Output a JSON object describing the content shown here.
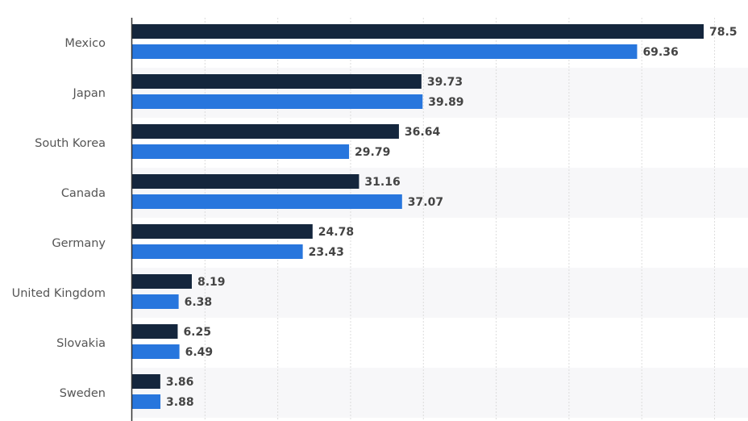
{
  "chart_data": {
    "type": "bar",
    "orientation": "horizontal",
    "categories": [
      "Mexico",
      "Japan",
      "South Korea",
      "Canada",
      "Germany",
      "United Kingdom",
      "Slovakia",
      "Sweden"
    ],
    "series": [
      {
        "values": [
          78.5,
          39.73,
          36.64,
          31.16,
          24.78,
          8.19,
          6.25,
          3.86
        ],
        "color": "#14263d"
      },
      {
        "values": [
          69.36,
          39.89,
          29.79,
          37.07,
          23.43,
          6.38,
          6.49,
          3.88
        ],
        "color": "#2876dd"
      }
    ],
    "xlim": [
      0,
      84.6
    ],
    "grid": true,
    "grid_step": 10,
    "data_labels": true
  }
}
